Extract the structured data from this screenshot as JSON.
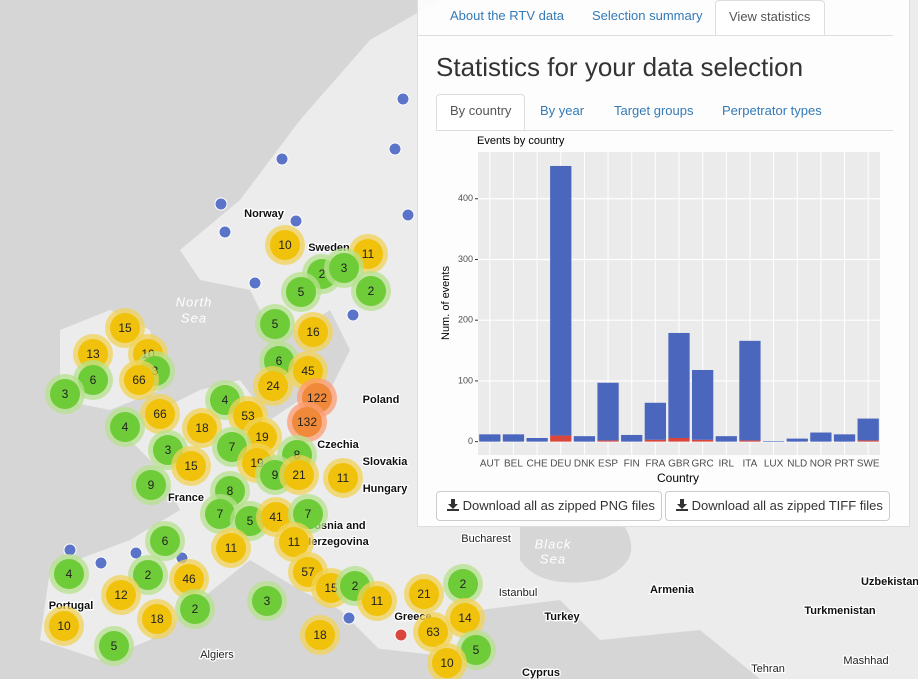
{
  "map": {
    "labels": [
      "Norway",
      "Sweden",
      "North",
      "Sea",
      "Poland",
      "Czechia",
      "Slovakia",
      "Hungary",
      "France",
      "Portugal",
      "Bosnia and",
      "Herzegovina",
      "Bucharest",
      "Black",
      "Sea",
      "Istanbul",
      "Turkey",
      "Armenia",
      "Uzbekistan",
      "Turkmenistan",
      "Algiers",
      "Cyprus",
      "Tehran",
      "Mashhad",
      "Greece"
    ],
    "clusters": [
      10,
      11,
      2,
      3,
      5,
      2,
      5,
      16,
      15,
      13,
      10,
      3,
      6,
      66,
      3,
      6,
      45,
      24,
      122,
      132,
      4,
      66,
      53,
      4,
      18,
      19,
      7,
      3,
      15,
      19,
      8,
      9,
      21,
      11,
      9,
      8,
      7,
      5,
      41,
      7,
      6,
      11,
      11,
      4,
      2,
      46,
      57,
      15,
      2,
      12,
      2,
      3,
      11,
      21,
      2,
      18,
      10,
      14,
      63,
      18,
      5,
      5,
      10
    ]
  },
  "tabs": [
    "About the RTV data",
    "Selection summary",
    "View statistics"
  ],
  "heading": "Statistics for your data selection",
  "subtabs": [
    "By country",
    "By year",
    "Target groups",
    "Perpetrator types"
  ],
  "chart_data": {
    "type": "bar",
    "title": "Events by country",
    "x_label": "Country",
    "y_label": "Num. of events",
    "categories": [
      "AUT",
      "BEL",
      "CHE",
      "DEU",
      "DNK",
      "ESP",
      "FIN",
      "FRA",
      "GBR",
      "GRC",
      "IRL",
      "ITA",
      "LUX",
      "NLD",
      "NOR",
      "PRT",
      "SWE"
    ],
    "series": [
      {
        "color": "#d9473c",
        "values": [
          0,
          0,
          0,
          10,
          0,
          2,
          0,
          3,
          6,
          3,
          0,
          2,
          0,
          0,
          0,
          0,
          2
        ]
      },
      {
        "color": "#4b66bd",
        "values": [
          12,
          12,
          6,
          444,
          9,
          95,
          11,
          61,
          173,
          115,
          9,
          164,
          1,
          5,
          15,
          12,
          36
        ]
      }
    ],
    "stacked": true,
    "ylim": [
      -22,
      477
    ],
    "yticks": [
      0,
      100,
      200,
      300,
      400
    ],
    "grid": true
  },
  "buttons": [
    "Download all as zipped PNG files",
    "Download all as zipped TIFF files"
  ]
}
